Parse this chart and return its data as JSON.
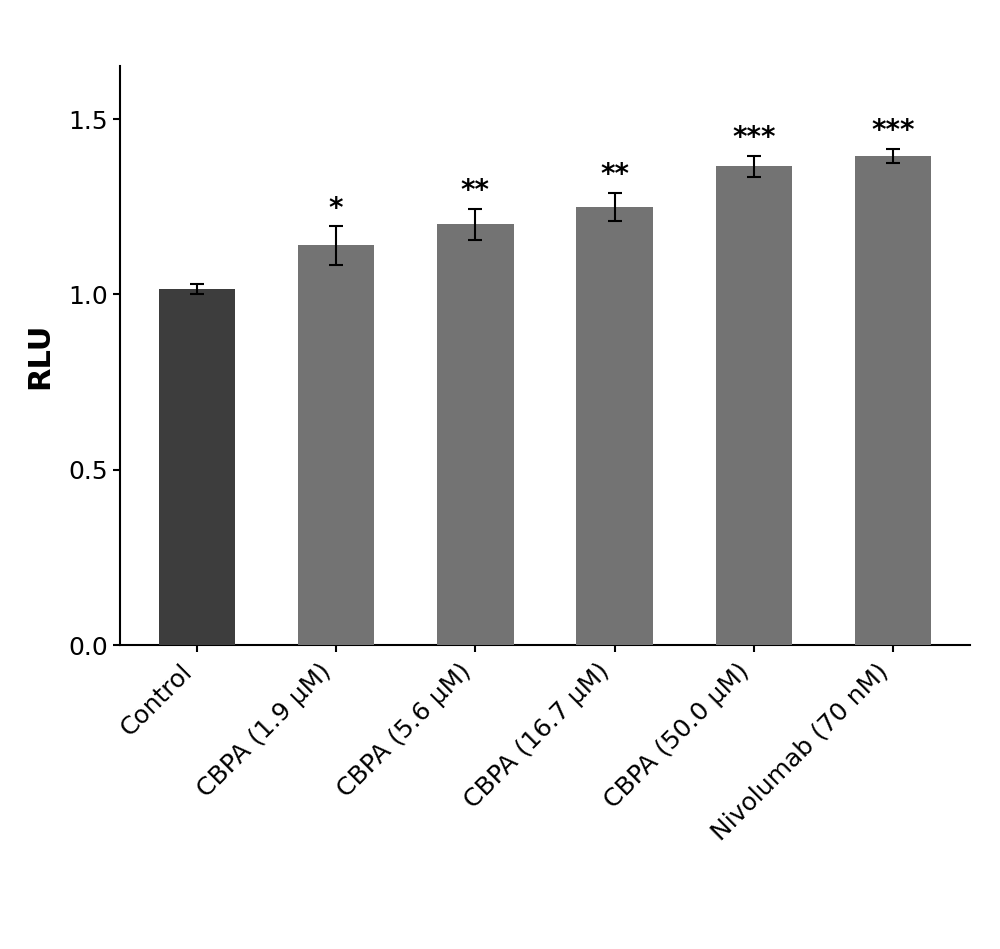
{
  "categories": [
    "Control",
    "CBPA (1.9 μM)",
    "CBPA (5.6 μM)",
    "CBPA (16.7 μM)",
    "CBPA (50.0 μM)",
    "Nivolumab (70 nM)"
  ],
  "values": [
    1.015,
    1.14,
    1.2,
    1.25,
    1.365,
    1.395
  ],
  "errors": [
    0.015,
    0.055,
    0.045,
    0.04,
    0.03,
    0.02
  ],
  "bar_colors": [
    "#3d3d3d",
    "#737373",
    "#737373",
    "#737373",
    "#737373",
    "#737373"
  ],
  "significance": [
    "",
    "*",
    "**",
    "**",
    "***",
    "***"
  ],
  "ylabel": "RLU",
  "ylim": [
    0,
    1.65
  ],
  "yticks": [
    0.0,
    0.5,
    1.0,
    1.5
  ],
  "background_color": "#ffffff",
  "bar_width": 0.55,
  "tick_fontsize": 18,
  "label_fontsize": 22,
  "sig_fontsize": 20,
  "figwidth": 10.0,
  "figheight": 9.49
}
